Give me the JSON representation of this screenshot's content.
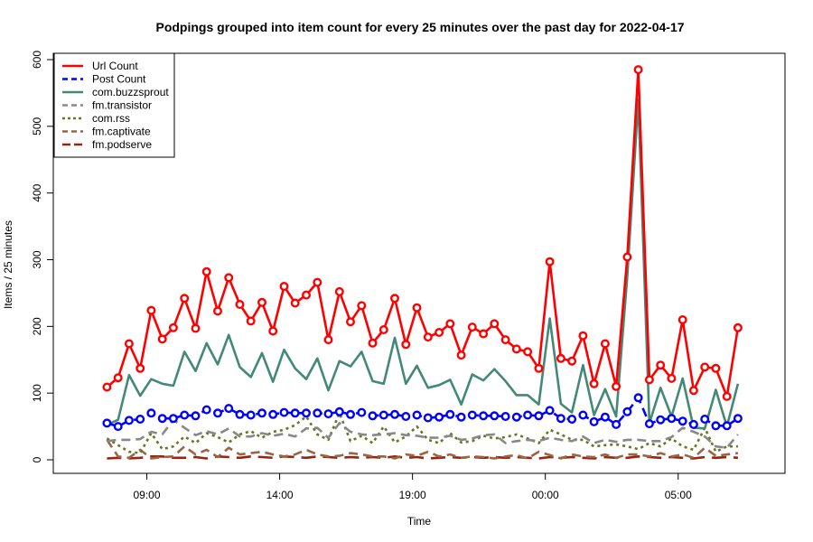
{
  "chart_data": {
    "type": "line",
    "title": "Podpings grouped into item count for every 25 minutes  over the past day for 2022-04-17",
    "xlabel": "Time",
    "ylabel": "Items / 25 minutes",
    "x_start": "2022-04-16 07:30",
    "x_step_minutes": 25,
    "xlim": [
      "2022-04-16 06:30",
      "2022-04-17 08:00"
    ],
    "ylim": [
      0,
      600
    ],
    "x_ticks": [
      {
        "time": "2022-04-16 09:00",
        "label": "09:00"
      },
      {
        "time": "2022-04-16 14:00",
        "label": "14:00"
      },
      {
        "time": "2022-04-16 19:00",
        "label": "19:00"
      },
      {
        "time": "2022-04-17 00:00",
        "label": "00:00"
      },
      {
        "time": "2022-04-17 05:00",
        "label": "05:00"
      }
    ],
    "y_ticks": [
      0,
      100,
      200,
      300,
      400,
      500,
      600
    ],
    "grid": false,
    "legend_position": "top-left",
    "series": [
      {
        "name": "Url Count",
        "color": "#ff0000",
        "style": "solid",
        "markers": true,
        "values": [
          109,
          123,
          174,
          137,
          224,
          181,
          198,
          242,
          197,
          282,
          223,
          273,
          233,
          208,
          236,
          193,
          260,
          235,
          247,
          266,
          180,
          252,
          207,
          231,
          175,
          195,
          242,
          173,
          228,
          184,
          191,
          204,
          157,
          199,
          189,
          204,
          180,
          166,
          162,
          137,
          297,
          152,
          148,
          186,
          114,
          174,
          110,
          304,
          585,
          120,
          142,
          122,
          210,
          104,
          139,
          137,
          95,
          198
        ]
      },
      {
        "name": "Post Count",
        "color": "#0000ff",
        "style": "dashed",
        "markers": true,
        "values": [
          55,
          50,
          59,
          61,
          70,
          62,
          62,
          67,
          66,
          75,
          70,
          77,
          68,
          67,
          70,
          68,
          71,
          70,
          70,
          70,
          69,
          72,
          68,
          71,
          66,
          67,
          68,
          65,
          67,
          63,
          64,
          68,
          64,
          67,
          66,
          66,
          65,
          64,
          67,
          66,
          74,
          62,
          61,
          67,
          57,
          64,
          53,
          72,
          93,
          54,
          60,
          62,
          58,
          53,
          61,
          51,
          51,
          62
        ]
      },
      {
        "name": "com.buzzsprout",
        "color": "#448877",
        "style": "solid",
        "markers": false,
        "values": [
          52,
          60,
          127,
          96,
          121,
          114,
          111,
          162,
          133,
          175,
          143,
          187,
          139,
          124,
          160,
          117,
          165,
          137,
          121,
          152,
          104,
          148,
          140,
          162,
          118,
          114,
          183,
          114,
          141,
          108,
          112,
          120,
          83,
          128,
          119,
          136,
          118,
          97,
          97,
          83,
          212,
          84,
          71,
          142,
          67,
          106,
          65,
          275,
          540,
          55,
          108,
          65,
          122,
          48,
          47,
          105,
          50,
          114
        ]
      },
      {
        "name": "fm.transistor",
        "color": "#888888",
        "style": "dashed",
        "markers": false,
        "values": [
          28,
          30,
          30,
          31,
          42,
          38,
          60,
          48,
          37,
          43,
          38,
          47,
          35,
          35,
          40,
          36,
          39,
          35,
          47,
          48,
          33,
          55,
          42,
          38,
          37,
          38,
          40,
          37,
          36,
          33,
          33,
          36,
          30,
          32,
          37,
          38,
          25,
          28,
          30,
          28,
          33,
          30,
          28,
          35,
          25,
          30,
          27,
          30,
          30,
          28,
          28,
          34,
          48,
          42,
          35,
          20,
          18,
          38
        ]
      },
      {
        "name": "com.rss",
        "color": "#667722",
        "style": "dotted",
        "markers": false,
        "values": [
          32,
          22,
          12,
          10,
          40,
          16,
          20,
          35,
          25,
          40,
          34,
          26,
          38,
          43,
          33,
          42,
          45,
          52,
          65,
          38,
          30,
          70,
          28,
          36,
          25,
          50,
          26,
          35,
          50,
          30,
          25,
          40,
          26,
          28,
          36,
          32,
          34,
          38,
          32,
          25,
          45,
          38,
          30,
          30,
          20,
          22,
          23,
          20,
          16,
          25,
          20,
          32,
          20,
          15,
          48,
          12,
          20,
          20
        ]
      },
      {
        "name": "fm.captivate",
        "color": "#996644",
        "style": "dashed",
        "markers": false,
        "values": [
          30,
          5,
          3,
          15,
          2,
          4,
          5,
          20,
          8,
          15,
          4,
          18,
          8,
          10,
          12,
          8,
          5,
          8,
          15,
          8,
          5,
          6,
          10,
          8,
          5,
          5,
          2,
          8,
          6,
          12,
          5,
          8,
          3,
          5,
          4,
          2,
          5,
          7,
          2,
          12,
          7,
          2,
          8,
          5,
          4,
          8,
          3,
          8,
          8,
          5,
          10,
          5,
          8,
          3,
          18,
          6,
          8,
          10
        ]
      },
      {
        "name": "fm.podserve",
        "color": "#992211",
        "style": "longdash",
        "markers": false,
        "values": [
          2,
          3,
          2,
          3,
          5,
          5,
          3,
          3,
          4,
          2,
          5,
          4,
          3,
          5,
          4,
          3,
          5,
          4,
          3,
          5,
          4,
          3,
          4,
          3,
          4,
          3,
          5,
          3,
          4,
          2,
          3,
          4,
          3,
          4,
          3,
          4,
          3,
          4,
          3,
          2,
          4,
          3,
          4,
          3,
          2,
          4,
          3,
          3,
          5,
          4,
          3,
          4,
          3,
          2,
          4,
          3,
          4,
          3
        ]
      }
    ]
  }
}
